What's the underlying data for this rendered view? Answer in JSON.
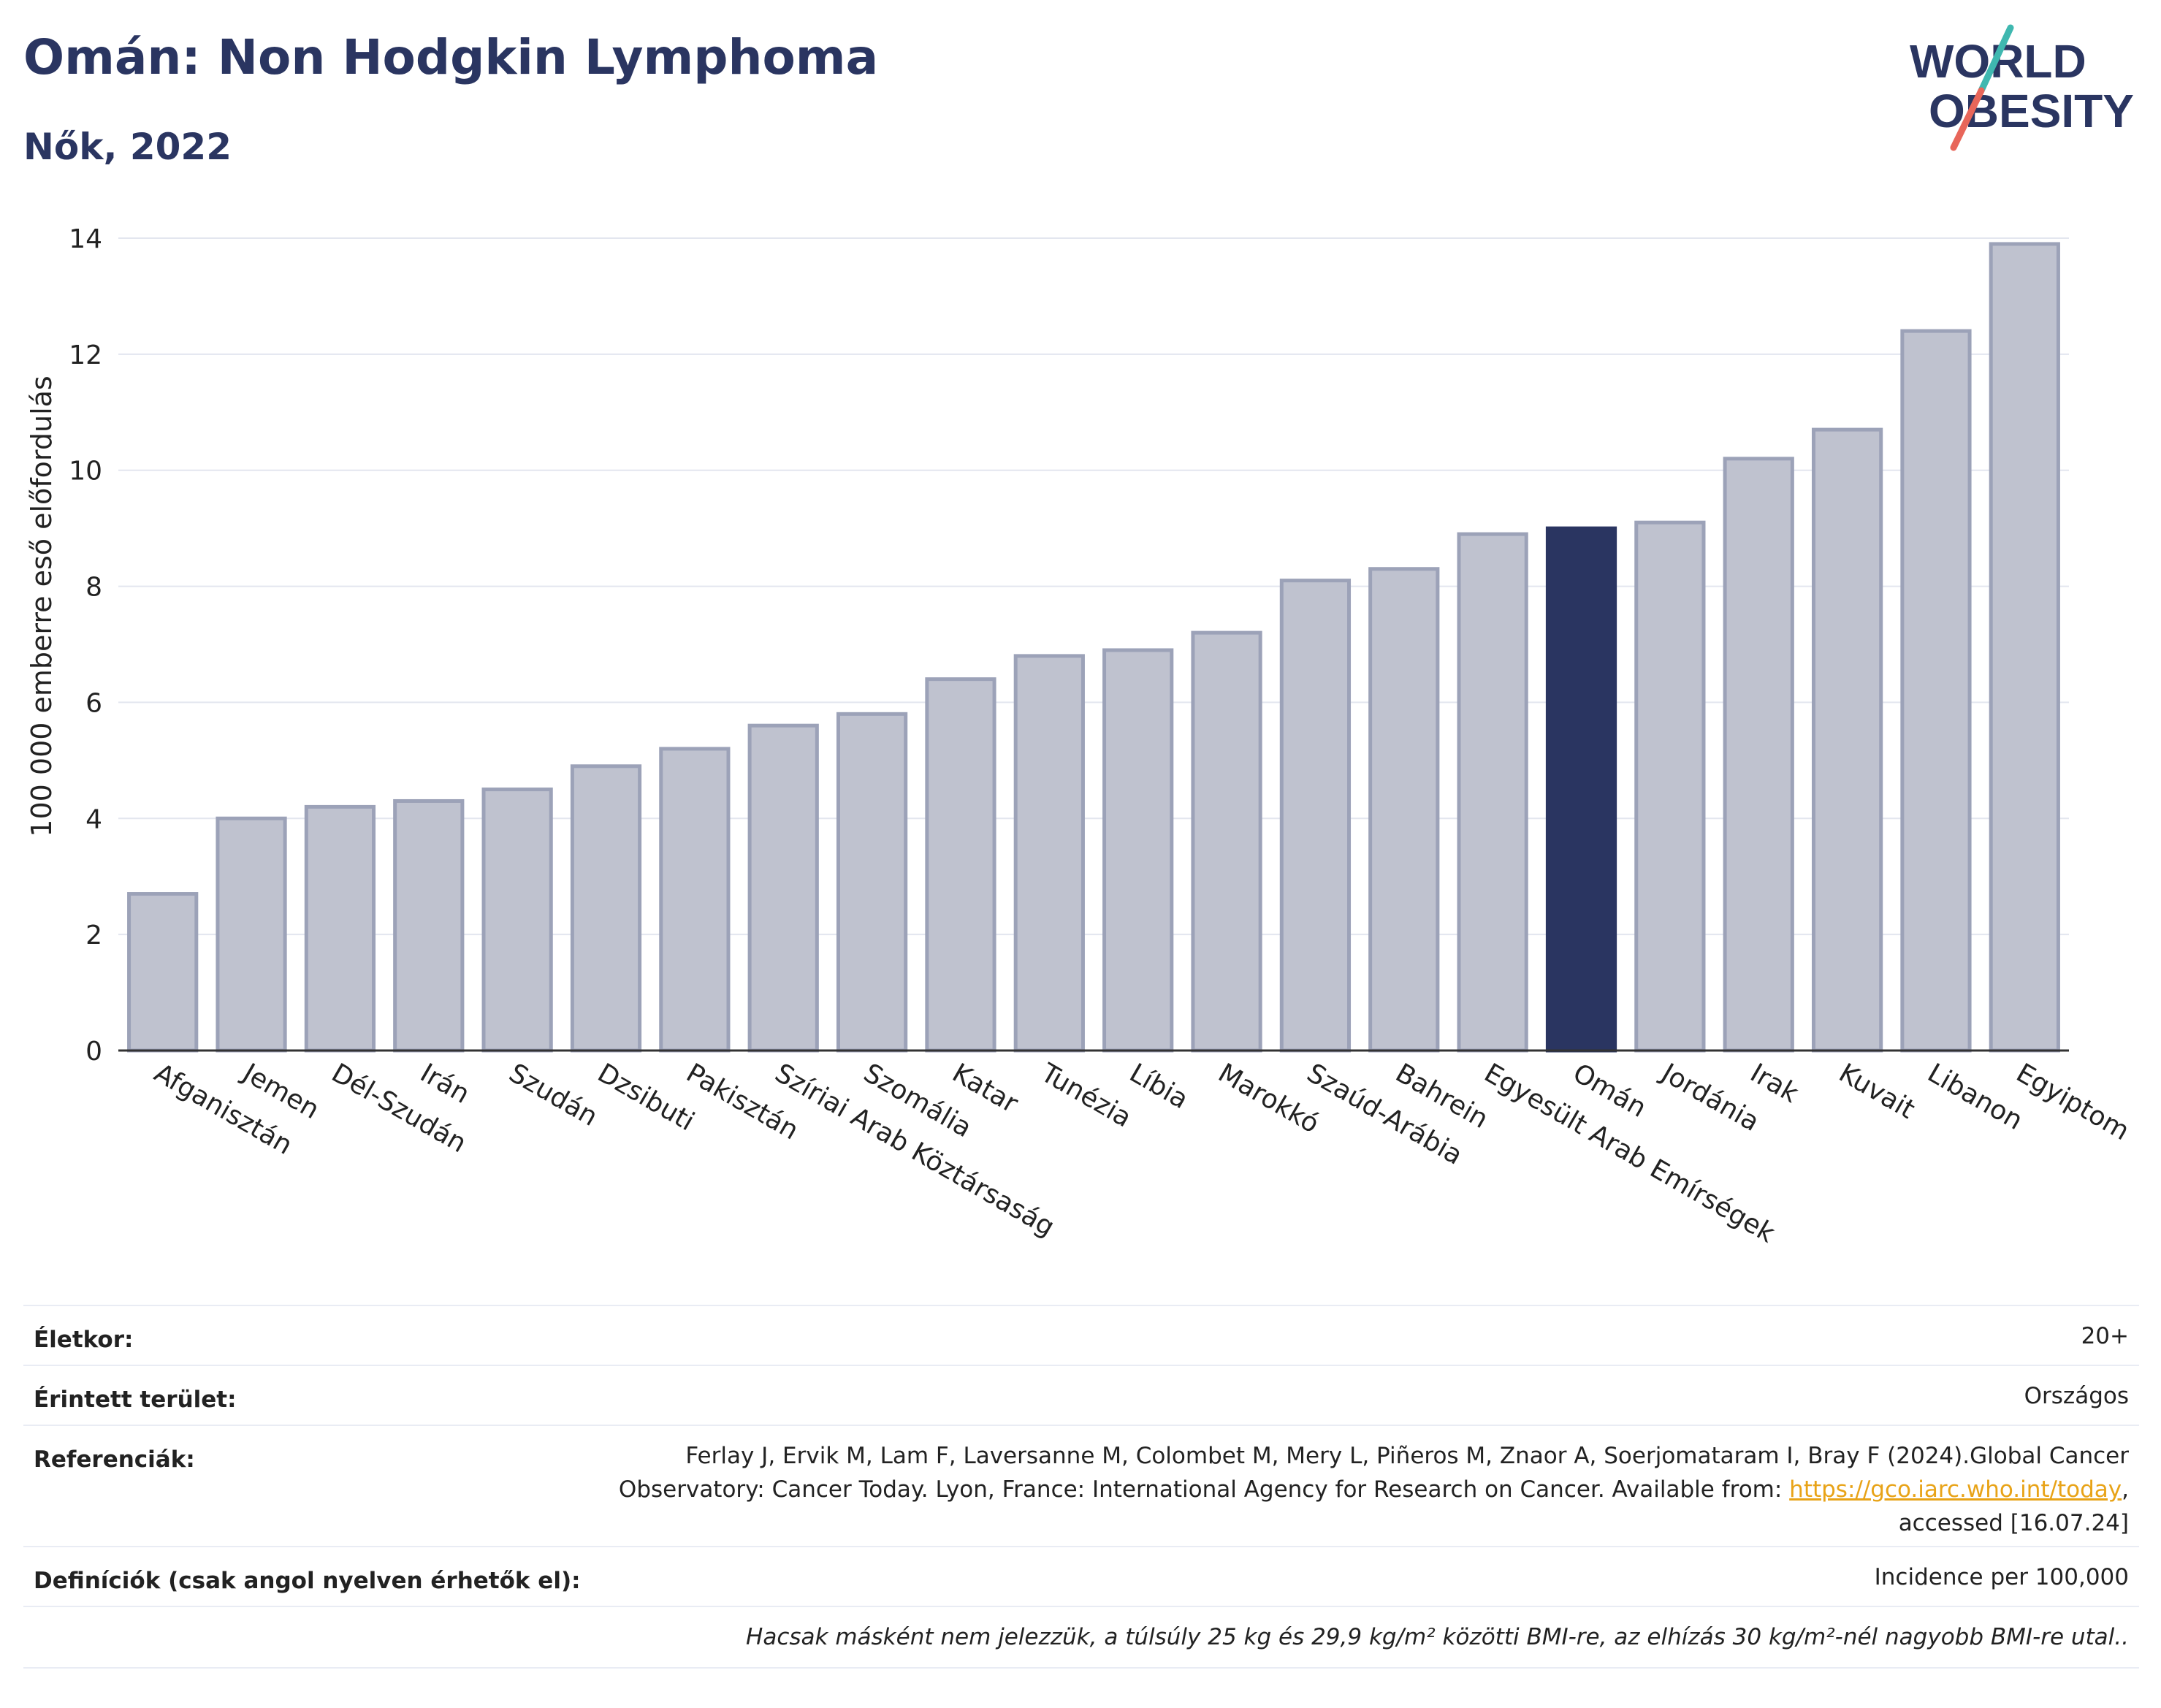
{
  "header": {
    "title": "Omán: Non Hodgkin Lymphoma",
    "subtitle": "Nők, 2022"
  },
  "logo": {
    "line1": "WORLD",
    "line2": "OBESITY",
    "text_color": "#2a3561",
    "slash_colors": [
      "#3fb8b0",
      "#e8665a"
    ]
  },
  "colors": {
    "bar": "#bfc2cf",
    "bar_stroke": "#9ca2b8",
    "highlight": "#2a3561",
    "grid": "#e3e6ef",
    "axis": "#333333"
  },
  "chart_data": {
    "type": "bar",
    "title": "Omán: Non Hodgkin Lymphoma",
    "subtitle": "Nők, 2022",
    "xlabel": "",
    "ylabel": "100 000 emberre eső előfordulás",
    "ylim": [
      0,
      14
    ],
    "yticks": [
      0,
      2,
      4,
      6,
      8,
      10,
      12,
      14
    ],
    "grid": true,
    "highlight_category": "Omán",
    "categories": [
      "Afganisztán",
      "Jemen",
      "Dél-Szudán",
      "Irán",
      "Szudán",
      "Dzsibuti",
      "Pakisztán",
      "Szíriai Arab Köztársaság",
      "Szomália",
      "Katar",
      "Tunézia",
      "Líbia",
      "Marokkó",
      "Szaúd-Arábia",
      "Bahrein",
      "Egyesült Arab Emírségek",
      "Omán",
      "Jordánia",
      "Irak",
      "Kuvait",
      "Libanon",
      "Egyiptom"
    ],
    "values": [
      2.7,
      4.0,
      4.2,
      4.3,
      4.5,
      4.9,
      5.2,
      5.6,
      5.8,
      6.4,
      6.8,
      6.9,
      7.2,
      8.1,
      8.3,
      8.9,
      9.0,
      9.1,
      10.2,
      10.7,
      12.4,
      13.9
    ]
  },
  "meta": {
    "rows": [
      {
        "label": "Életkor:",
        "value": "20+"
      },
      {
        "label": "Érintett terület:",
        "value": "Országos"
      },
      {
        "label": "Referenciák:",
        "value_parts": {
          "line1": "Ferlay J, Ervik M, Lam F, Laversanne M, Colombet M, Mery L, Piñeros M, Znaor A, Soerjomataram I, Bray F (2024).Global Cancer",
          "line2_pre": "Observatory: Cancer Today. Lyon, France: International Agency for Research on Cancer. Available from: ",
          "link": "https://gco.iarc.who.int/today",
          "line2_post": ",",
          "line3": "accessed [16.07.24]"
        }
      },
      {
        "label": "Definíciók (csak angol nyelven érhetők el):",
        "value": "Incidence per 100,000"
      },
      {
        "label": "",
        "value": "Hacsak másként nem jelezzük, a túlsúly 25 kg és 29,9 kg/m² közötti BMI-re, az elhízás 30 kg/m²-nél nagyobb BMI-re utal.."
      }
    ]
  }
}
